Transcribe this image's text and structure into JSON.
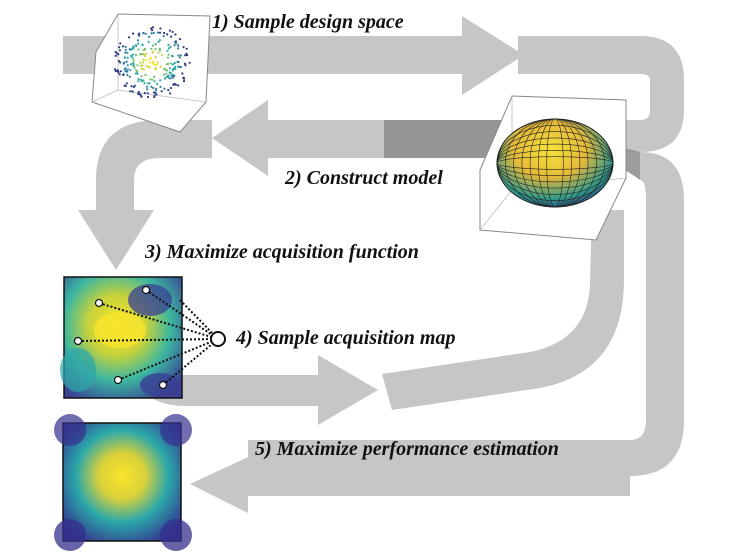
{
  "steps": [
    {
      "label": "1) Sample design space"
    },
    {
      "label": "2) Construct model"
    },
    {
      "label": "3) Maximize acquisition function"
    },
    {
      "label": "4) Sample acquisition map"
    },
    {
      "label": "5) Maximize performance estimation"
    }
  ],
  "colors": {
    "arrow": "#c6c6c6",
    "arrow_overlap": "#8c8c8c",
    "heat_low": "#3a2f8f",
    "heat_mid": "#2fa5a8",
    "heat_high": "#f5e330"
  },
  "figures": {
    "scatter3d": {
      "icon": "3d-scatter-plot"
    },
    "surface3d": {
      "icon": "3d-ellipsoid-surface"
    },
    "acquisition_map": {
      "icon": "heatmap-with-sample-lines",
      "sample_points": 6
    },
    "performance_map": {
      "icon": "heatmap"
    }
  }
}
